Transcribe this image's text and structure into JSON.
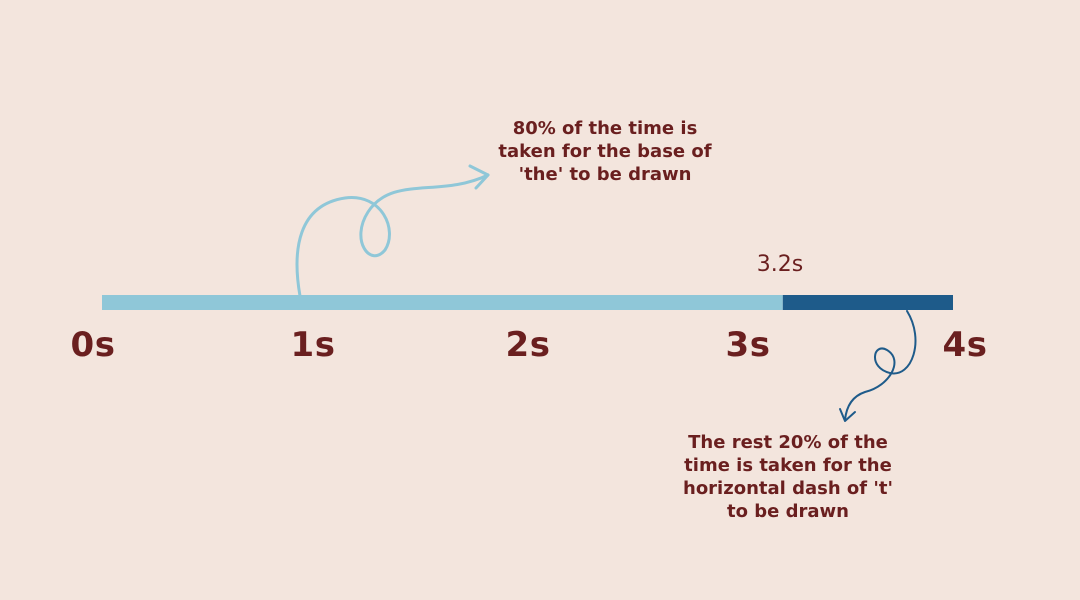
{
  "timeline": {
    "start": 0,
    "end": 4,
    "split": 3.2,
    "split_label": "3.2s",
    "colors": {
      "background": "#f3e5dd",
      "segment_base": "#8fc7d8",
      "segment_dash": "#1e5b8a",
      "text": "#6a1f1f"
    },
    "ticks": [
      {
        "value": 0,
        "label": "0s"
      },
      {
        "value": 1,
        "label": "1s"
      },
      {
        "value": 2,
        "label": "2s"
      },
      {
        "value": 3,
        "label": "3s"
      },
      {
        "value": 4,
        "label": "4s"
      }
    ],
    "segments": [
      {
        "name": "base",
        "from": 0,
        "to": 3.2,
        "percent": 80
      },
      {
        "name": "dash",
        "from": 3.2,
        "to": 4,
        "percent": 20
      }
    ]
  },
  "annotations": {
    "top": {
      "lines": [
        "80% of the time is",
        "taken for the base of",
        "'the' to be drawn"
      ]
    },
    "bottom": {
      "lines": [
        "The rest 20% of the",
        "time is taken for the",
        "horizontal dash of 't'",
        "to be drawn"
      ]
    }
  }
}
